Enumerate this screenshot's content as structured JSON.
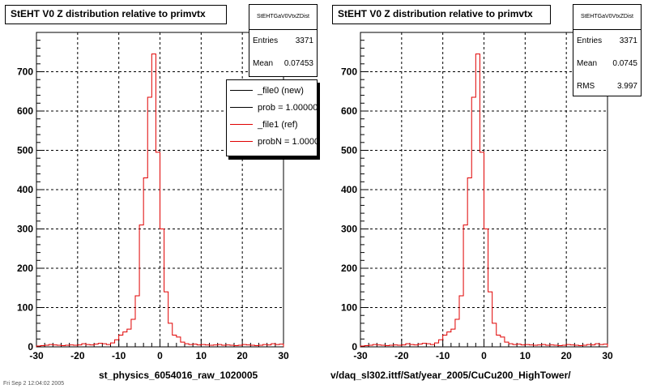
{
  "chart_data": [
    {
      "type": "histogram",
      "title": "StEHT V0 Z distribution relative to primvtx",
      "xlabel": "st_physics_6054016_raw_1020005",
      "ylabel": "",
      "xlim": [
        -30,
        30
      ],
      "ylim": [
        0,
        800
      ],
      "xticks": [
        -30,
        -20,
        -10,
        0,
        10,
        20,
        30
      ],
      "yticks": [
        0,
        100,
        200,
        300,
        400,
        500,
        600,
        700
      ],
      "grid": true,
      "bin_edges_start": -30,
      "bin_width": 1,
      "series": [
        {
          "name": "_file1 (ref)",
          "color": "#e00000",
          "values": [
            2,
            3,
            4,
            6,
            5,
            4,
            3,
            4,
            5,
            4,
            5,
            8,
            6,
            5,
            7,
            9,
            8,
            6,
            10,
            18,
            30,
            38,
            45,
            70,
            130,
            310,
            430,
            635,
            745,
            495,
            300,
            140,
            60,
            30,
            25,
            12,
            8,
            6,
            7,
            5,
            6,
            5,
            4,
            5,
            6,
            4,
            5,
            4,
            3,
            4,
            6,
            5,
            4,
            3,
            4,
            6,
            5,
            8,
            6,
            7
          ]
        }
      ],
      "stats": {
        "name": "StEHTGaV0VtxZDist",
        "entries": "3371",
        "mean": "0.07453"
      },
      "legend": [
        {
          "label": "_file0 (new)",
          "color": "#000000"
        },
        {
          "label": "prob = 1.000000",
          "color": "#000000"
        },
        {
          "label": "_file1 (ref)",
          "color": "#e00000"
        },
        {
          "label": "probN = 1.000000",
          "color": "#e00000"
        }
      ]
    },
    {
      "type": "histogram",
      "title": "StEHT V0 Z distribution relative to primvtx",
      "xlabel": "v/daq_sl302.ittf/Sat/year_2005/CuCu200_HighTower/",
      "ylabel": "",
      "xlim": [
        -30,
        30
      ],
      "ylim": [
        0,
        800
      ],
      "xticks": [
        -30,
        -20,
        -10,
        0,
        10,
        20,
        30
      ],
      "yticks": [
        0,
        100,
        200,
        300,
        400,
        500,
        600,
        700
      ],
      "grid": true,
      "bin_edges_start": -30,
      "bin_width": 1,
      "series": [
        {
          "name": "",
          "color": "#e00000",
          "values": [
            2,
            3,
            4,
            6,
            5,
            4,
            3,
            4,
            5,
            4,
            5,
            8,
            6,
            5,
            7,
            9,
            8,
            6,
            10,
            18,
            30,
            38,
            45,
            70,
            130,
            310,
            430,
            635,
            745,
            495,
            300,
            140,
            60,
            30,
            25,
            12,
            8,
            6,
            7,
            5,
            6,
            5,
            4,
            5,
            6,
            4,
            5,
            4,
            3,
            4,
            6,
            5,
            4,
            3,
            4,
            6,
            5,
            8,
            6,
            7
          ]
        }
      ],
      "stats": {
        "name": "StEHTGaV0VtxZDist",
        "entries": "3371",
        "mean": "0.0745",
        "rms": "3.997"
      }
    }
  ],
  "labels": {
    "entries": "Entries",
    "mean": "Mean",
    "rms": "RMS"
  },
  "footer": "Fri Sep 2 12:04:02 2005"
}
